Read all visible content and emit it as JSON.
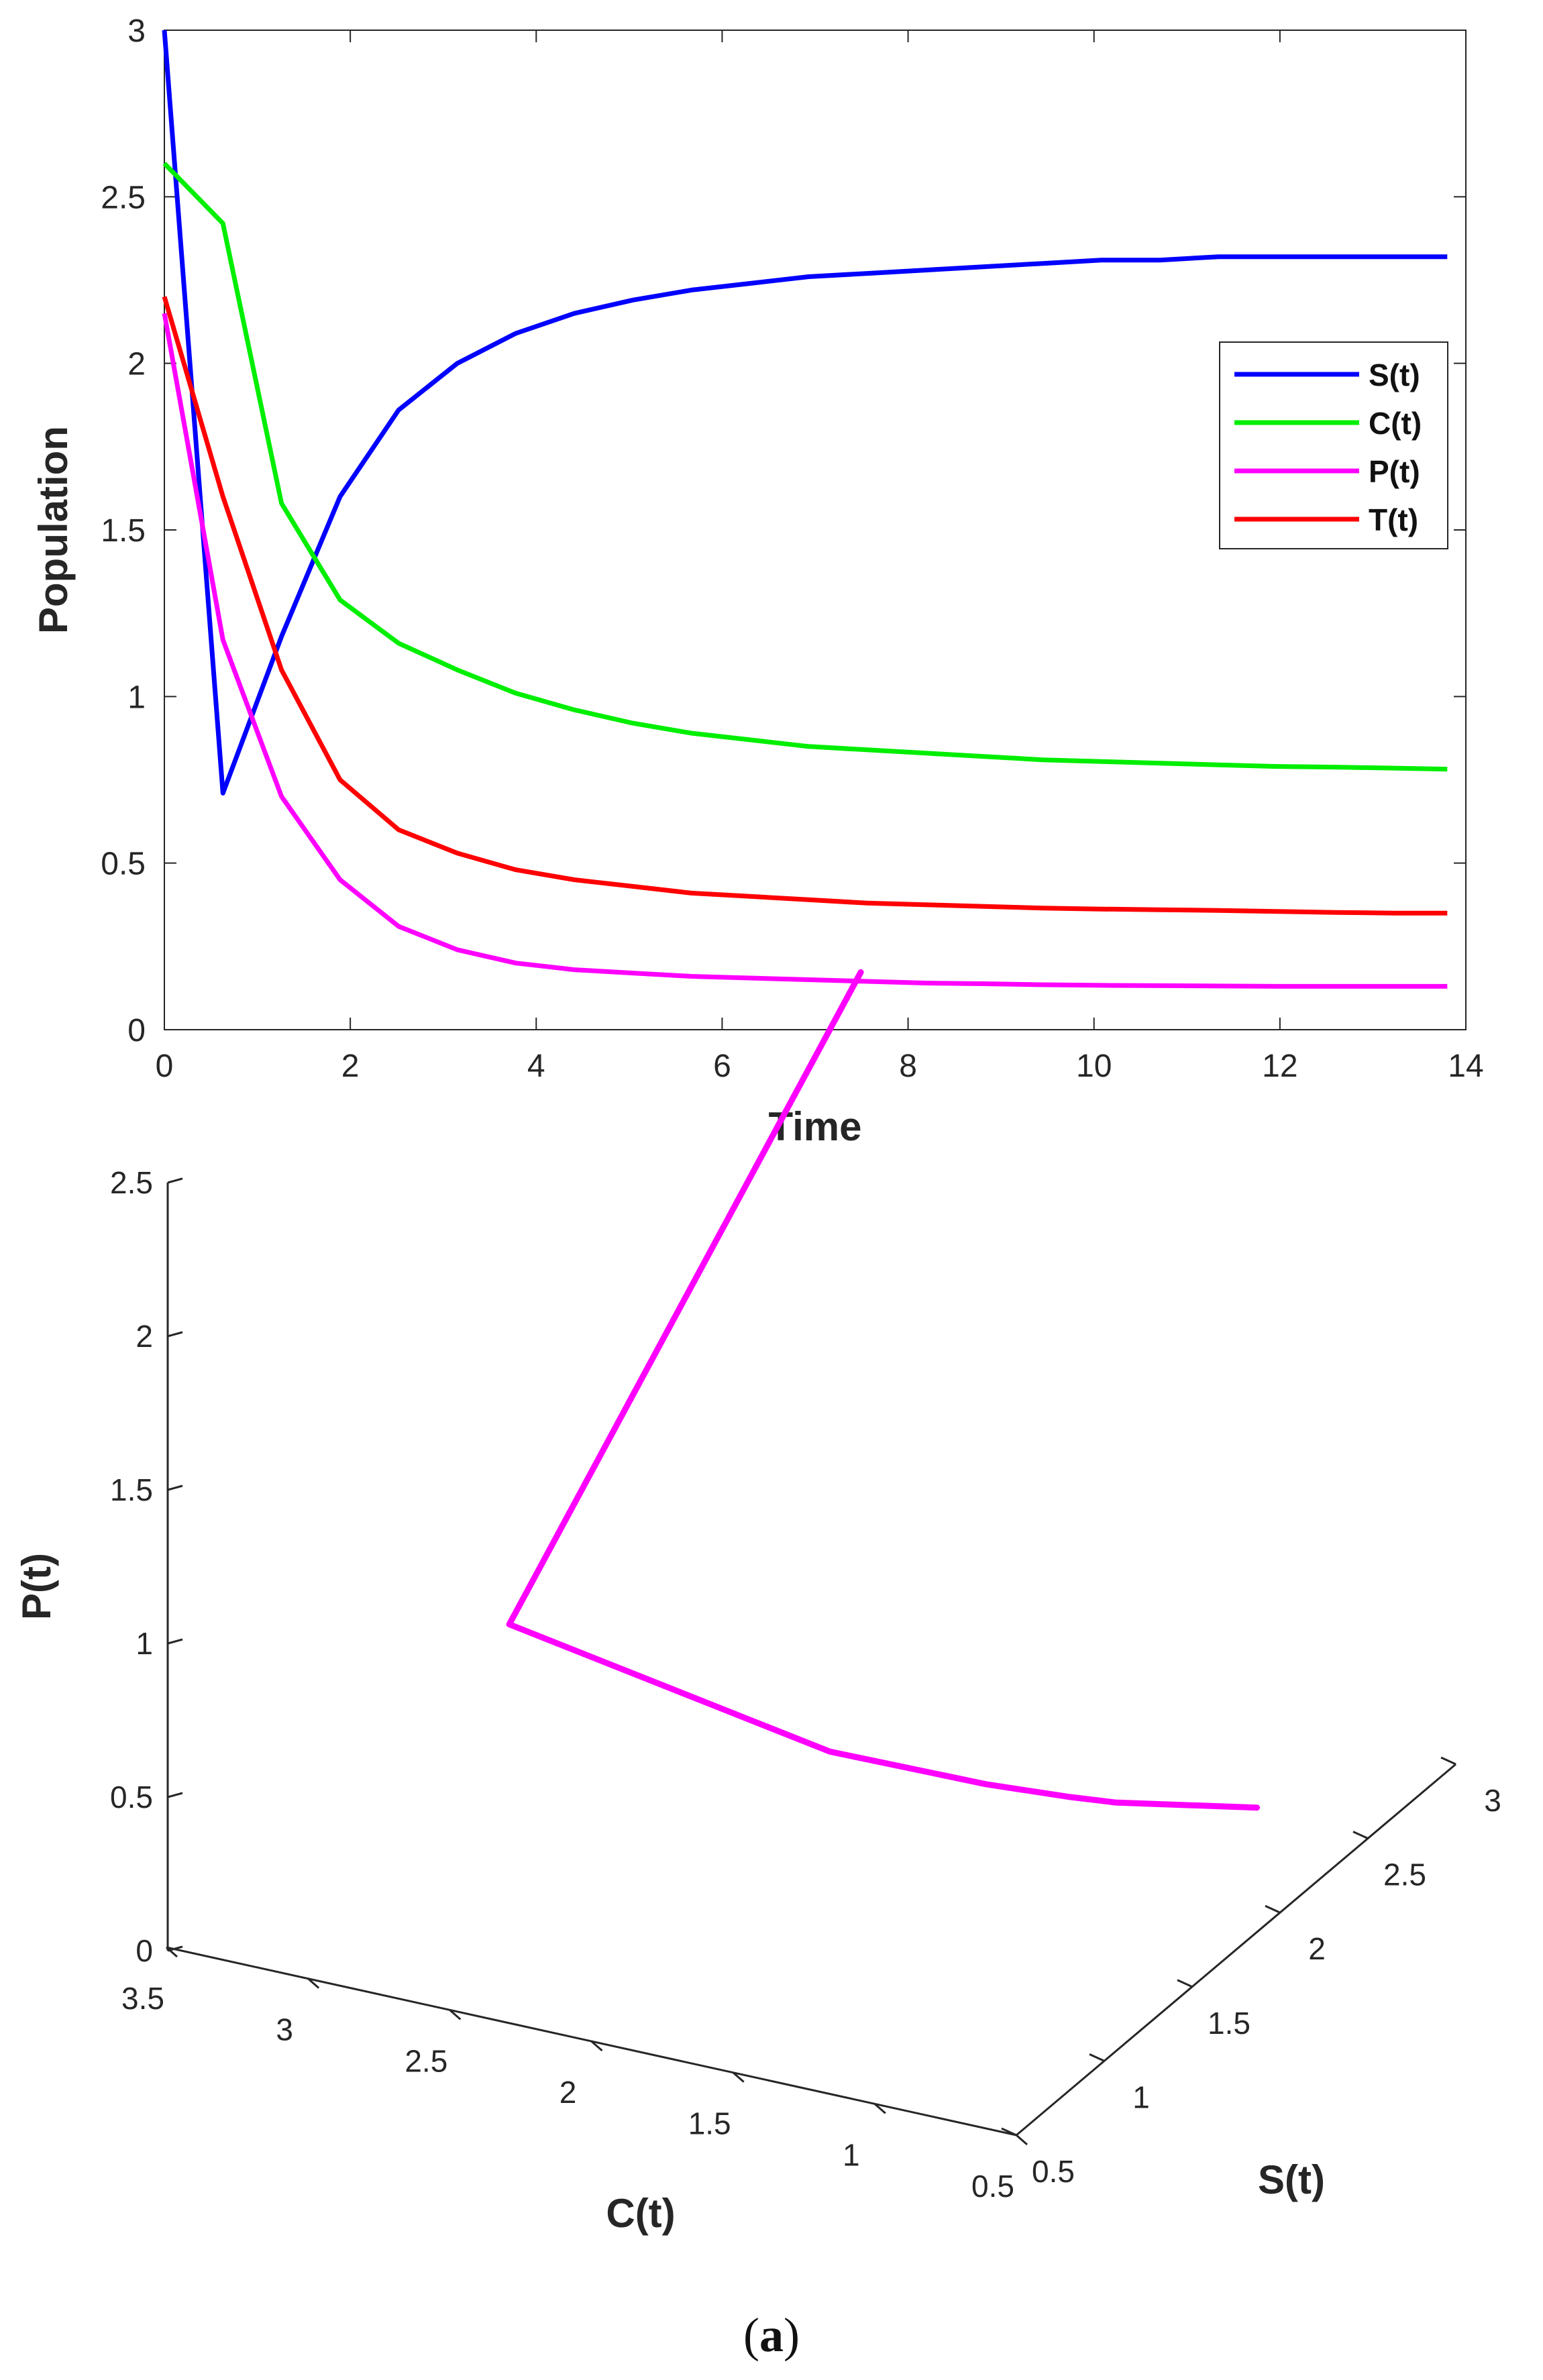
{
  "caption": {
    "open": "(",
    "label": "a",
    "close": ")"
  },
  "chart_data": [
    {
      "type": "line",
      "title": "",
      "xlabel": "Time",
      "ylabel": "Population",
      "xlim": [
        0,
        14
      ],
      "ylim": [
        0,
        3
      ],
      "xticks": [
        "0",
        "2",
        "4",
        "6",
        "8",
        "10",
        "12",
        "14"
      ],
      "yticks": [
        "0",
        "0.5",
        "1",
        "1.5",
        "2",
        "2.5",
        "3"
      ],
      "legend": {
        "position": "right",
        "entries": [
          "S(t)",
          "C(t)",
          "P(t)",
          "T(t)"
        ]
      },
      "x": [
        0,
        0.63,
        1.26,
        1.89,
        2.52,
        3.15,
        3.78,
        4.41,
        5.04,
        5.67,
        6.3,
        6.93,
        7.56,
        8.19,
        8.82,
        9.45,
        10.08,
        10.71,
        11.34,
        11.97,
        12.6,
        13.23,
        13.8
      ],
      "series": [
        {
          "name": "S(t)",
          "color": "#0000ff",
          "values": [
            3.0,
            0.71,
            1.18,
            1.6,
            1.86,
            2.0,
            2.09,
            2.15,
            2.19,
            2.22,
            2.24,
            2.26,
            2.27,
            2.28,
            2.29,
            2.3,
            2.31,
            2.31,
            2.32,
            2.32,
            2.32,
            2.32,
            2.32
          ]
        },
        {
          "name": "C(t)",
          "color": "#00ee00",
          "values": [
            2.6,
            2.42,
            1.58,
            1.29,
            1.16,
            1.08,
            1.01,
            0.96,
            0.92,
            0.89,
            0.87,
            0.85,
            0.84,
            0.83,
            0.82,
            0.81,
            0.805,
            0.8,
            0.795,
            0.79,
            0.788,
            0.785,
            0.782
          ]
        },
        {
          "name": "P(t)",
          "color": "#ff00ff",
          "values": [
            2.15,
            1.17,
            0.7,
            0.45,
            0.31,
            0.24,
            0.2,
            0.18,
            0.17,
            0.16,
            0.155,
            0.15,
            0.145,
            0.14,
            0.138,
            0.135,
            0.133,
            0.132,
            0.131,
            0.13,
            0.13,
            0.13,
            0.13
          ]
        },
        {
          "name": "T(t)",
          "color": "#ff0000",
          "values": [
            2.2,
            1.6,
            1.08,
            0.75,
            0.6,
            0.53,
            0.48,
            0.45,
            0.43,
            0.41,
            0.4,
            0.39,
            0.38,
            0.375,
            0.37,
            0.365,
            0.362,
            0.36,
            0.358,
            0.355,
            0.352,
            0.35,
            0.35
          ]
        }
      ]
    },
    {
      "type": "line3d",
      "title": "",
      "xlabel": "C(t)",
      "ylabel": "S(t)",
      "zlabel": "P(t)",
      "xlim": [
        0.5,
        3.5
      ],
      "ylim": [
        0.5,
        3
      ],
      "zlim": [
        0,
        2.5
      ],
      "xticks": [
        "3.5",
        "3",
        "2.5",
        "2",
        "1.5",
        "1",
        "0.5"
      ],
      "yticks": [
        "0.5",
        "1",
        "1.5",
        "2",
        "2.5",
        "3"
      ],
      "zticks": [
        "0",
        "0.5",
        "1",
        "1.5",
        "2",
        "2.5"
      ],
      "series": [
        {
          "name": "trajectory",
          "color": "#ff00ff",
          "points": [
            {
              "c": 2.6,
              "s": 3.0,
              "p": 2.15
            },
            {
              "c": 2.42,
              "s": 0.71,
              "p": 1.17
            },
            {
              "c": 1.58,
              "s": 1.18,
              "p": 0.7
            },
            {
              "c": 1.29,
              "s": 1.6,
              "p": 0.45
            },
            {
              "c": 1.16,
              "s": 1.86,
              "p": 0.31
            },
            {
              "c": 1.08,
              "s": 2.0,
              "p": 0.24
            },
            {
              "c": 0.9,
              "s": 2.2,
              "p": 0.17
            },
            {
              "c": 0.78,
              "s": 2.32,
              "p": 0.13
            }
          ]
        }
      ]
    }
  ]
}
